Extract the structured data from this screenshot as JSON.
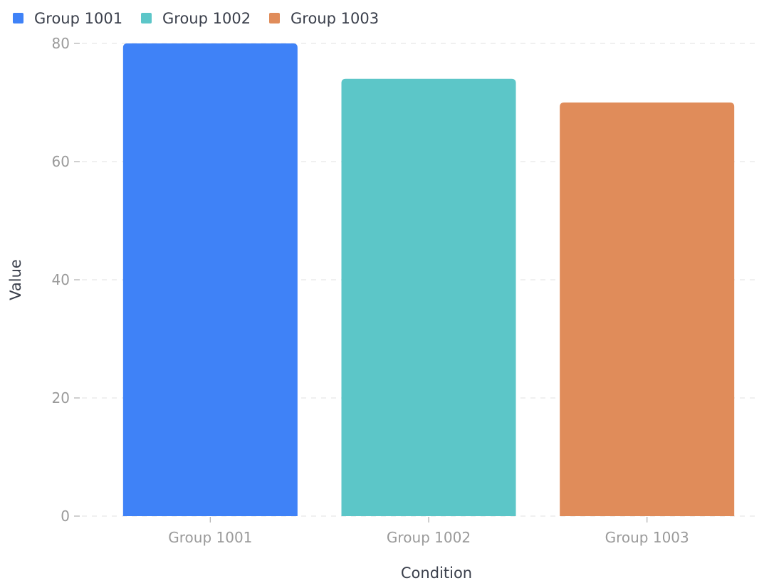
{
  "chart_data": {
    "type": "bar",
    "categories": [
      "Group 1001",
      "Group 1002",
      "Group 1003"
    ],
    "series": [
      {
        "name": "Group 1001",
        "values": [
          80,
          null,
          null
        ],
        "color": "#3f82f7"
      },
      {
        "name": "Group 1002",
        "values": [
          null,
          74,
          null
        ],
        "color": "#5cc6c8"
      },
      {
        "name": "Group 1003",
        "values": [
          null,
          null,
          70
        ],
        "color": "#e08c5a"
      }
    ],
    "xlabel": "Condition",
    "ylabel": "Value",
    "ylim": [
      0,
      80
    ],
    "yticks": [
      0,
      20,
      40,
      60,
      80
    ],
    "grid": true,
    "legend": "top-left"
  }
}
